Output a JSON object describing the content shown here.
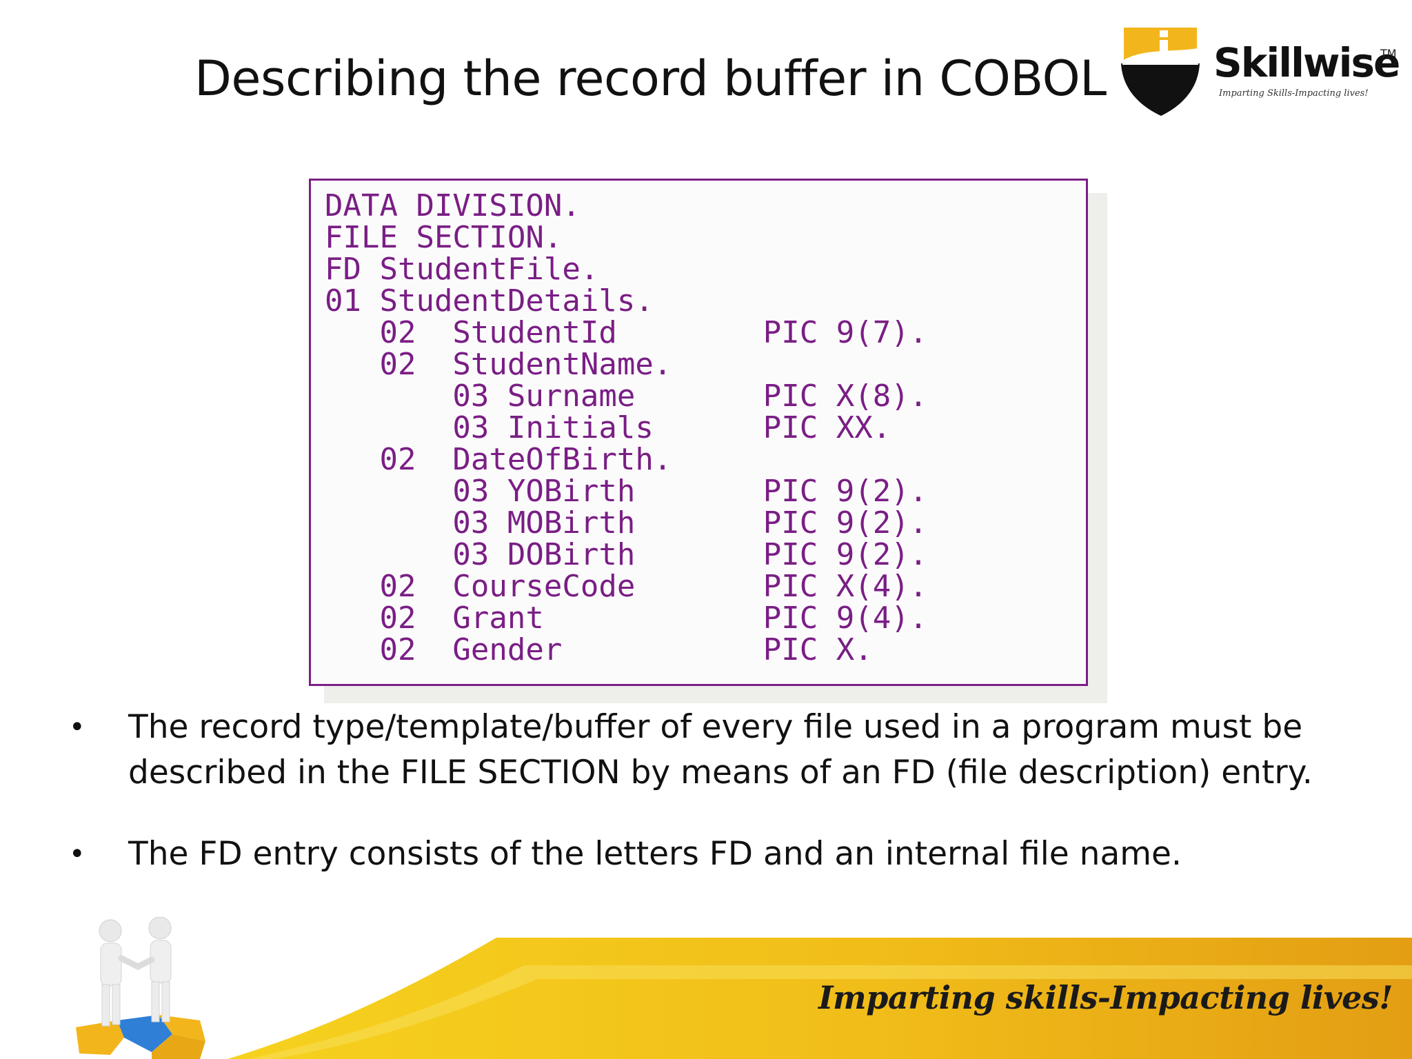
{
  "slide": {
    "title": "Describing the record buffer in COBOL"
  },
  "logo": {
    "brand_name": "Skillwise",
    "trademark": "TM",
    "tagline": "Imparting Skills-Impacting lives!"
  },
  "code": {
    "lines": [
      "DATA DIVISION.",
      "FILE SECTION.",
      "FD StudentFile.",
      "01 StudentDetails.",
      "   02  StudentId        PIC 9(7).",
      "   02  StudentName.",
      "       03 Surname       PIC X(8).",
      "       03 Initials      PIC XX.",
      "   02  DateOfBirth.",
      "       03 YOBirth       PIC 9(2).",
      "       03 MOBirth       PIC 9(2).",
      "       03 DOBirth       PIC 9(2).",
      "   02  CourseCode       PIC X(4).",
      "   02  Grant            PIC 9(4).",
      "   02  Gender           PIC X."
    ]
  },
  "bullets": [
    {
      "marker": "•",
      "text": "The record type/template/buffer of every file used in a program must be described in the FILE SECTION by means of an FD (file description) entry."
    },
    {
      "marker": "•",
      "text": "The FD entry consists of the letters FD and an internal file name."
    }
  ],
  "footer": {
    "tagline": "Imparting skills-Impacting lives!"
  },
  "colors": {
    "code_text": "#7a1e85",
    "code_border": "#7b1f86",
    "footer_yellow": "#f3c21b",
    "footer_orange": "#e5a214",
    "logo_yellow": "#f2b51c"
  }
}
